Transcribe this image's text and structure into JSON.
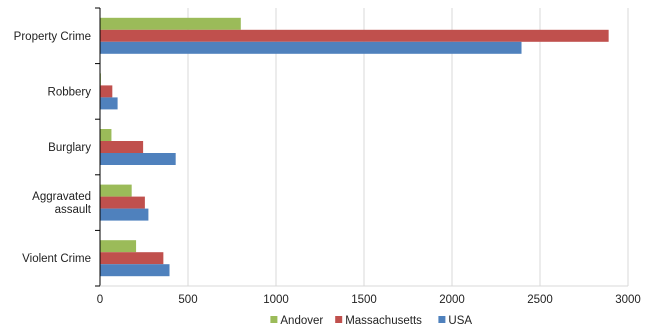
{
  "chart_data": {
    "type": "bar",
    "orientation": "horizontal",
    "categories": [
      [
        "Property Crime"
      ],
      [
        "Robbery"
      ],
      [
        "Burglary"
      ],
      [
        "Aggravated",
        "assault"
      ],
      [
        "Violent Crime"
      ]
    ],
    "series": [
      {
        "name": "Andover",
        "color": "#9bbb59",
        "values": [
          800,
          5,
          65,
          180,
          205
        ]
      },
      {
        "name": "Massachusetts",
        "color": "#c0504d",
        "values": [
          2890,
          70,
          245,
          255,
          360
        ]
      },
      {
        "name": "USA",
        "color": "#4f81bd",
        "values": [
          2395,
          100,
          430,
          275,
          395
        ]
      }
    ],
    "xlim": [
      0,
      3000
    ],
    "xticks": [
      "0",
      "500",
      "1000",
      "1500",
      "2000",
      "2500",
      "3000"
    ],
    "grid": true,
    "legend_position": "bottom",
    "title": "",
    "xlabel": "",
    "ylabel": ""
  }
}
